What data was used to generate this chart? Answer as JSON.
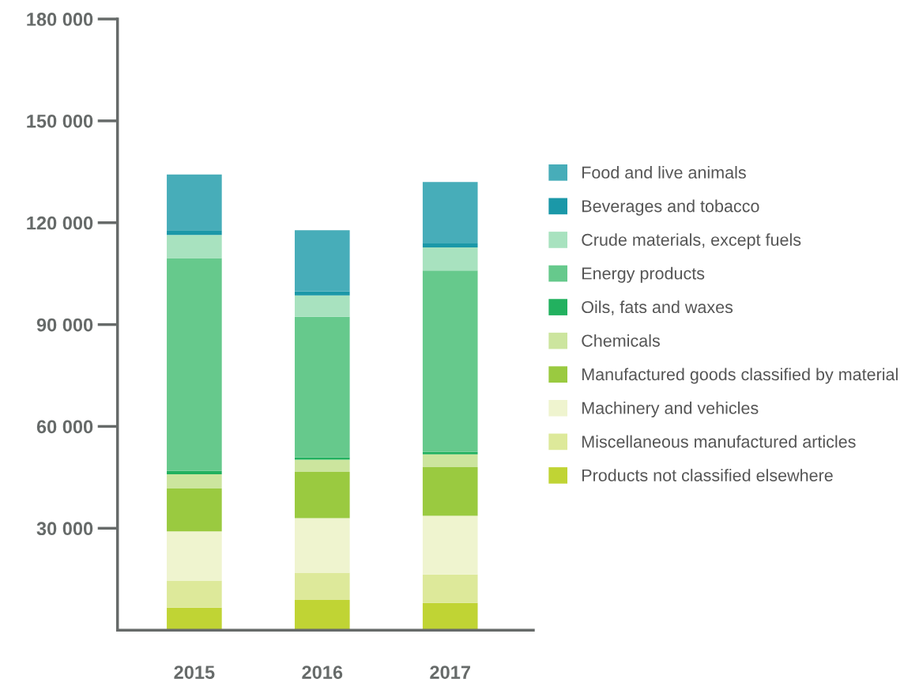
{
  "chart_data": {
    "type": "bar",
    "stacked": true,
    "categories": [
      "2015",
      "2016",
      "2017"
    ],
    "series": [
      {
        "name": "Products not classified elsewhere",
        "color": "#c0d434",
        "values": [
          6600,
          8900,
          8000
        ]
      },
      {
        "name": "Miscellaneous manufactured articles",
        "color": "#dde99a",
        "values": [
          8000,
          8000,
          8400
        ]
      },
      {
        "name": "Machinery and vehicles",
        "color": "#eff4cf",
        "values": [
          14500,
          16100,
          17300
        ]
      },
      {
        "name": "Manufactured goods classified by material",
        "color": "#9aca40",
        "values": [
          12600,
          13600,
          14300
        ]
      },
      {
        "name": "Chemicals",
        "color": "#cce59e",
        "values": [
          4200,
          3600,
          3800
        ]
      },
      {
        "name": "Oils, fats and waxes",
        "color": "#22b15f",
        "values": [
          1000,
          700,
          700
        ]
      },
      {
        "name": "Energy products",
        "color": "#66c98c",
        "values": [
          62700,
          41400,
          53400
        ]
      },
      {
        "name": "Crude materials, except fuels",
        "color": "#a8e2bf",
        "values": [
          6800,
          6300,
          6800
        ]
      },
      {
        "name": "Beverages and tobacco",
        "color": "#1b98a8",
        "values": [
          1400,
          1200,
          1200
        ]
      },
      {
        "name": "Food and live animals",
        "color": "#47adb9",
        "values": [
          16400,
          18000,
          18100
        ]
      }
    ],
    "ylim": [
      0,
      180000
    ],
    "yticks": [
      {
        "value": 30000,
        "label": "30 000"
      },
      {
        "value": 60000,
        "label": "60 000"
      },
      {
        "value": 90000,
        "label": "90 000"
      },
      {
        "value": 120000,
        "label": "120 000"
      },
      {
        "value": 150000,
        "label": "150 000"
      },
      {
        "value": 180000,
        "label": "180 000"
      }
    ],
    "grid": false,
    "legend": "right"
  }
}
